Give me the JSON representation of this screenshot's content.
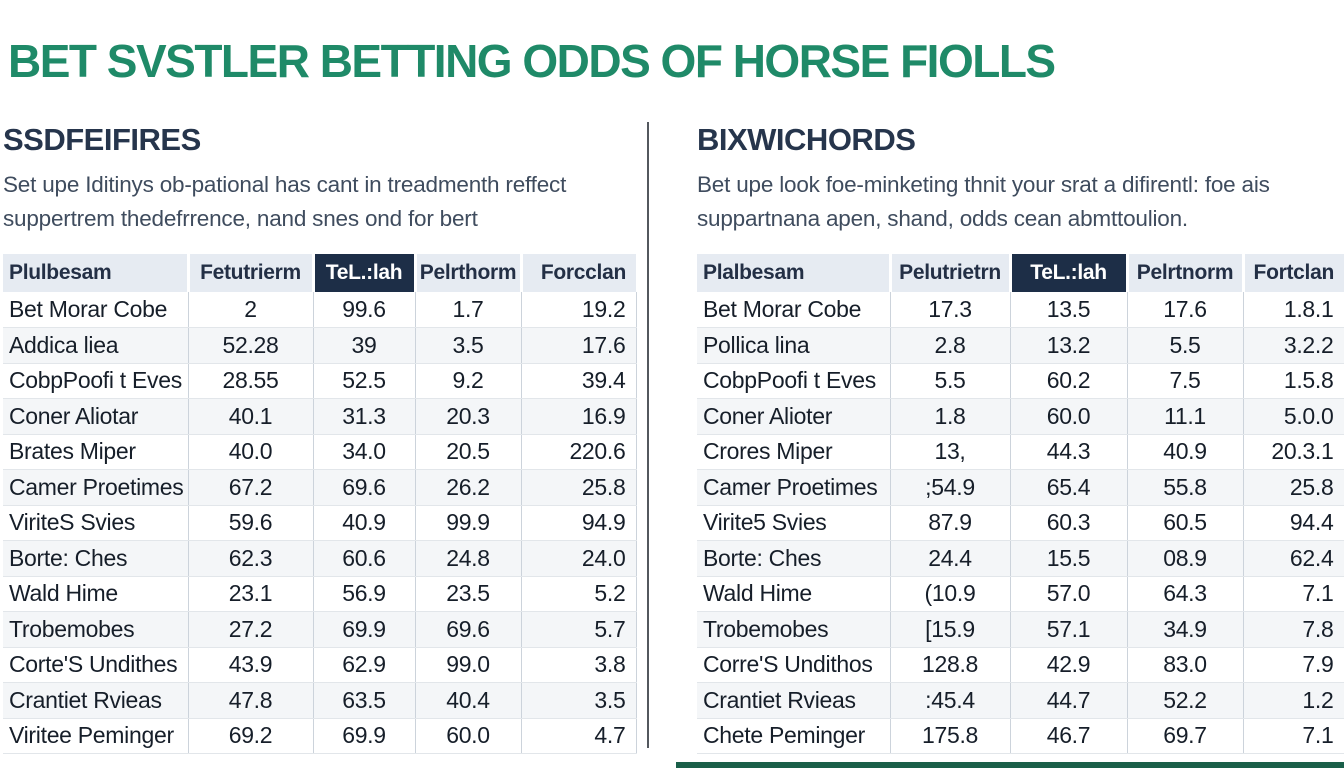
{
  "page": {
    "title": "BET SVSTLER BETTING ODDS OF HORSE FIOLLS"
  },
  "colors": {
    "title_green": "#1f8a68",
    "heading_navy": "#26354c",
    "header_bg": "#e6ebf2",
    "highlight_bg": "#1d2e47",
    "row_alt": "#f4f6f8",
    "divider": "#53585e",
    "bottom_bar": "#1a5f49"
  },
  "left_panel": {
    "heading": "SSDFEIFIRES",
    "description_lines": [
      "Set upe Iditinys ob-pational has cant in treadmenth reffect",
      "suppertrem thedefrrence, nand snes ond for bert"
    ],
    "table": {
      "columns": [
        "Plulbesam",
        "Fetutrierm",
        "TeL.:lah",
        "Pelrthorm",
        "Forcclan"
      ],
      "highlight_column_index": 2,
      "rows": [
        [
          "Bet Morar Cobe",
          "2",
          "99.6",
          "1.7",
          "19.2"
        ],
        [
          "Addica liea",
          "52.28",
          "39",
          "3.5",
          "17.6"
        ],
        [
          "CobpPoofi t Eves",
          "28.55",
          "52.5",
          "9.2",
          "39.4"
        ],
        [
          "Coner  Aliotar",
          "40.1",
          "31.3",
          "20.3",
          "16.9"
        ],
        [
          "Brates Miper",
          "40.0",
          "34.0",
          "20.5",
          "220.6"
        ],
        [
          "Camer Proetimes",
          "67.2",
          "69.6",
          "26.2",
          "25.8"
        ],
        [
          "ViriteS Svies",
          "59.6",
          "40.9",
          "99.9",
          "94.9"
        ],
        [
          "Borte: Ches",
          "62.3",
          "60.6",
          "24.8",
          "24.0"
        ],
        [
          "Wald Hime",
          "23.1",
          "56.9",
          "23.5",
          "5.2"
        ],
        [
          "Trobemobes",
          "27.2",
          "69.9",
          "69.6",
          "5.7"
        ],
        [
          "Corte'S Undithes",
          "43.9",
          "62.9",
          "99.0",
          "3.8"
        ],
        [
          "Crantiet Rvieas",
          "47.8",
          "63.5",
          "40.4",
          "3.5"
        ],
        [
          "Viritee Peminger",
          "69.2",
          "69.9",
          "60.0",
          "4.7"
        ]
      ]
    }
  },
  "right_panel": {
    "heading": "BIXWICHORDS",
    "description_lines": [
      "Bet upe look foe-minketing thnit your srat a difirentl: foe ais",
      "suppartnana apen, shand, odds cean abmttoulion."
    ],
    "table": {
      "columns": [
        "Plalbesam",
        "Pelutrietrn",
        "TeL.:lah",
        "Pelrtnorm",
        "Fortclan"
      ],
      "highlight_column_index": 2,
      "rows": [
        [
          "Bet Morar Cobe",
          "17.3",
          "13.5",
          "17.6",
          "1.8.1"
        ],
        [
          "Pollica lina",
          "2.8",
          "13.2",
          "5.5",
          "3.2.2"
        ],
        [
          "CobpPoofi t Eves",
          "5.5",
          "60.2",
          "7.5",
          "1.5.8"
        ],
        [
          "Coner  Alioter",
          "1.8",
          "60.0",
          "11.1",
          "5.0.0"
        ],
        [
          "Crores Miper",
          "13,",
          "44.3",
          "40.9",
          "20.3.1"
        ],
        [
          "Camer Proetimes",
          ";54.9",
          "65.4",
          "55.8",
          "25.8"
        ],
        [
          "Virite5 Svies",
          "87.9",
          "60.3",
          "60.5",
          "94.4"
        ],
        [
          "Borte: Ches",
          "24.4",
          "15.5",
          "08.9",
          "62.4"
        ],
        [
          "Wald Hime",
          "(10.9",
          "57.0",
          "64.3",
          "7.1"
        ],
        [
          "Trobemobes",
          "[15.9",
          "57.1",
          "34.9",
          "7.8"
        ],
        [
          "Corre'S Undithos",
          "128.8",
          "42.9",
          "83.0",
          "7.9"
        ],
        [
          "Crantiet Rvieas",
          ":45.4",
          "44.7",
          "52.2",
          "1.2"
        ],
        [
          "Chete Peminger",
          "175.8",
          "46.7",
          "69.7",
          "7.1"
        ]
      ]
    }
  }
}
